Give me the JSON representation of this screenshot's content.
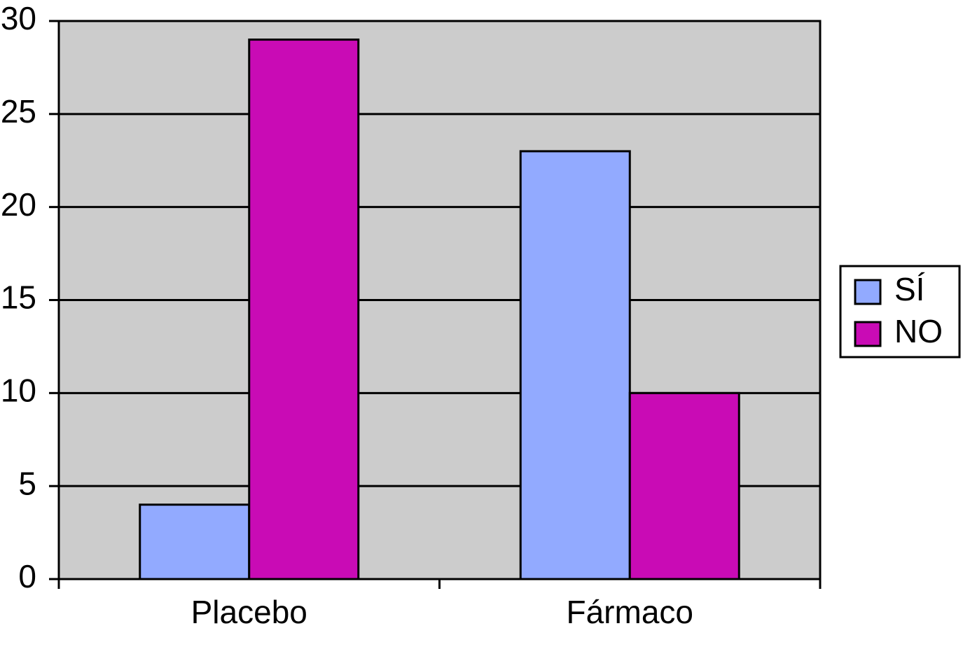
{
  "chart_data": {
    "type": "bar",
    "categories": [
      "Placebo",
      "Fármaco"
    ],
    "series": [
      {
        "name": "SÍ",
        "color": "#92aaff",
        "values": [
          4,
          23
        ]
      },
      {
        "name": "NO",
        "color": "#c90bb5",
        "values": [
          29,
          10
        ]
      }
    ],
    "ylim": [
      0,
      30
    ],
    "yticks": [
      0,
      5,
      10,
      15,
      20,
      25,
      30
    ],
    "grid": true,
    "legend": "right"
  }
}
